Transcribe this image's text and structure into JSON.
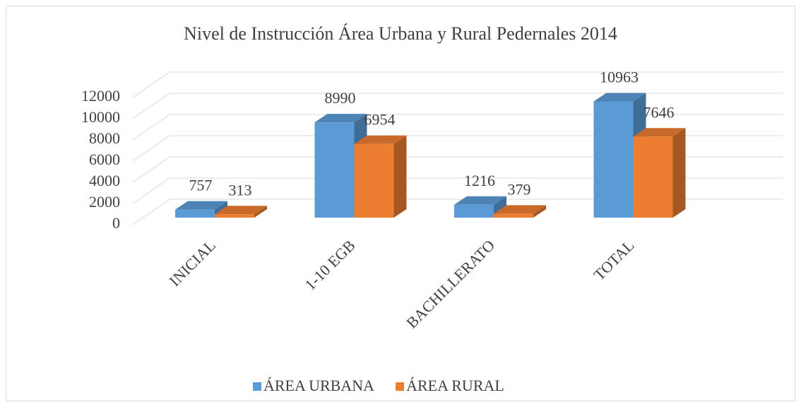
{
  "chart_data": {
    "type": "bar3d",
    "title": "Nivel de Instrucción Área Urbana y Rural Pedernales 2014",
    "categories": [
      "INICIAL",
      "1-10 EGB",
      "BACHILLERATO",
      "TOTAL"
    ],
    "series": [
      {
        "name": "ÁREA URBANA",
        "color": "#5b9bd5",
        "values": [
          757,
          8990,
          1216,
          10963
        ]
      },
      {
        "name": "ÁREA RURAL",
        "color": "#ed7d31",
        "values": [
          313,
          6954,
          379,
          7646
        ]
      }
    ],
    "ylim": [
      0,
      12000
    ],
    "yticks": [
      0,
      2000,
      4000,
      6000,
      8000,
      10000,
      12000
    ],
    "grid": true,
    "legend": "bottom"
  }
}
